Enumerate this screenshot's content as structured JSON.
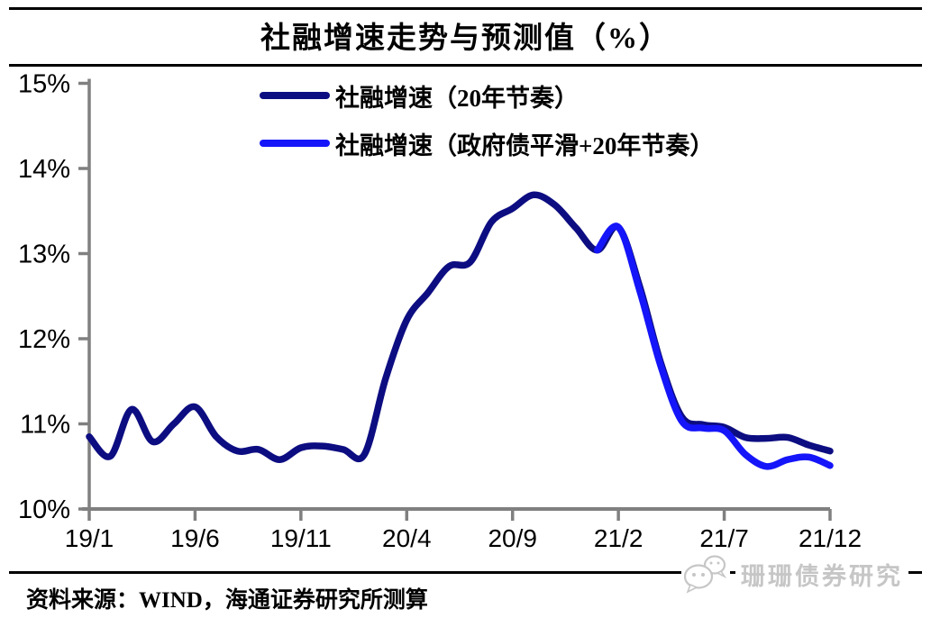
{
  "page": {
    "title": "社融增速走势与预测值（%）",
    "source": "资料来源：WIND，海通证券研究所测算",
    "watermark": "珊珊债券研究"
  },
  "colors": {
    "series_navy": "#0D0D82",
    "series_blue": "#1515FA",
    "axis_gray": "#808080",
    "tick_text": "#000000",
    "watermark_gray": "#C6C6C6"
  },
  "chart_data": {
    "type": "line",
    "title": "社融增速走势与预测值（%）",
    "xlabel": "",
    "ylabel": "",
    "ylim": [
      10,
      15
    ],
    "grid": "off",
    "legend_position": "top-inside",
    "x": [
      "19/1",
      "19/2",
      "19/3",
      "19/4",
      "19/5",
      "19/6",
      "19/7",
      "19/8",
      "19/9",
      "19/10",
      "19/11",
      "19/12",
      "20/1",
      "20/2",
      "20/3",
      "20/4",
      "20/5",
      "20/6",
      "20/7",
      "20/8",
      "20/9",
      "20/10",
      "20/11",
      "20/12",
      "21/1",
      "21/2",
      "21/3",
      "21/4",
      "21/5",
      "21/6",
      "21/7",
      "21/8",
      "21/9",
      "21/10",
      "21/11",
      "21/12"
    ],
    "x_tick_labels": [
      "19/1",
      "19/6",
      "19/11",
      "20/4",
      "20/9",
      "21/2",
      "21/7",
      "21/12"
    ],
    "y_tick_labels": [
      "10%",
      "11%",
      "12%",
      "13%",
      "14%",
      "15%"
    ],
    "series": [
      {
        "name": "社融增速（20年节奏）",
        "color": "#0D0D82",
        "values": [
          10.85,
          10.62,
          11.17,
          10.79,
          11.0,
          11.2,
          10.85,
          10.68,
          10.7,
          10.58,
          10.72,
          10.74,
          10.7,
          10.64,
          11.53,
          12.22,
          12.54,
          12.85,
          12.9,
          13.37,
          13.53,
          13.69,
          13.57,
          13.3,
          13.04,
          13.31,
          12.62,
          11.72,
          11.08,
          10.99,
          10.96,
          10.84,
          10.83,
          10.84,
          10.75,
          10.68
        ]
      },
      {
        "name": "社融增速（政府债平滑+20年节奏）",
        "color": "#1515FA",
        "values": [
          null,
          null,
          null,
          null,
          null,
          null,
          null,
          null,
          null,
          null,
          null,
          null,
          null,
          null,
          null,
          null,
          null,
          null,
          null,
          null,
          null,
          null,
          null,
          null,
          13.04,
          13.31,
          12.57,
          11.68,
          11.03,
          10.95,
          10.92,
          10.64,
          10.5,
          10.58,
          10.61,
          10.51
        ]
      }
    ]
  }
}
